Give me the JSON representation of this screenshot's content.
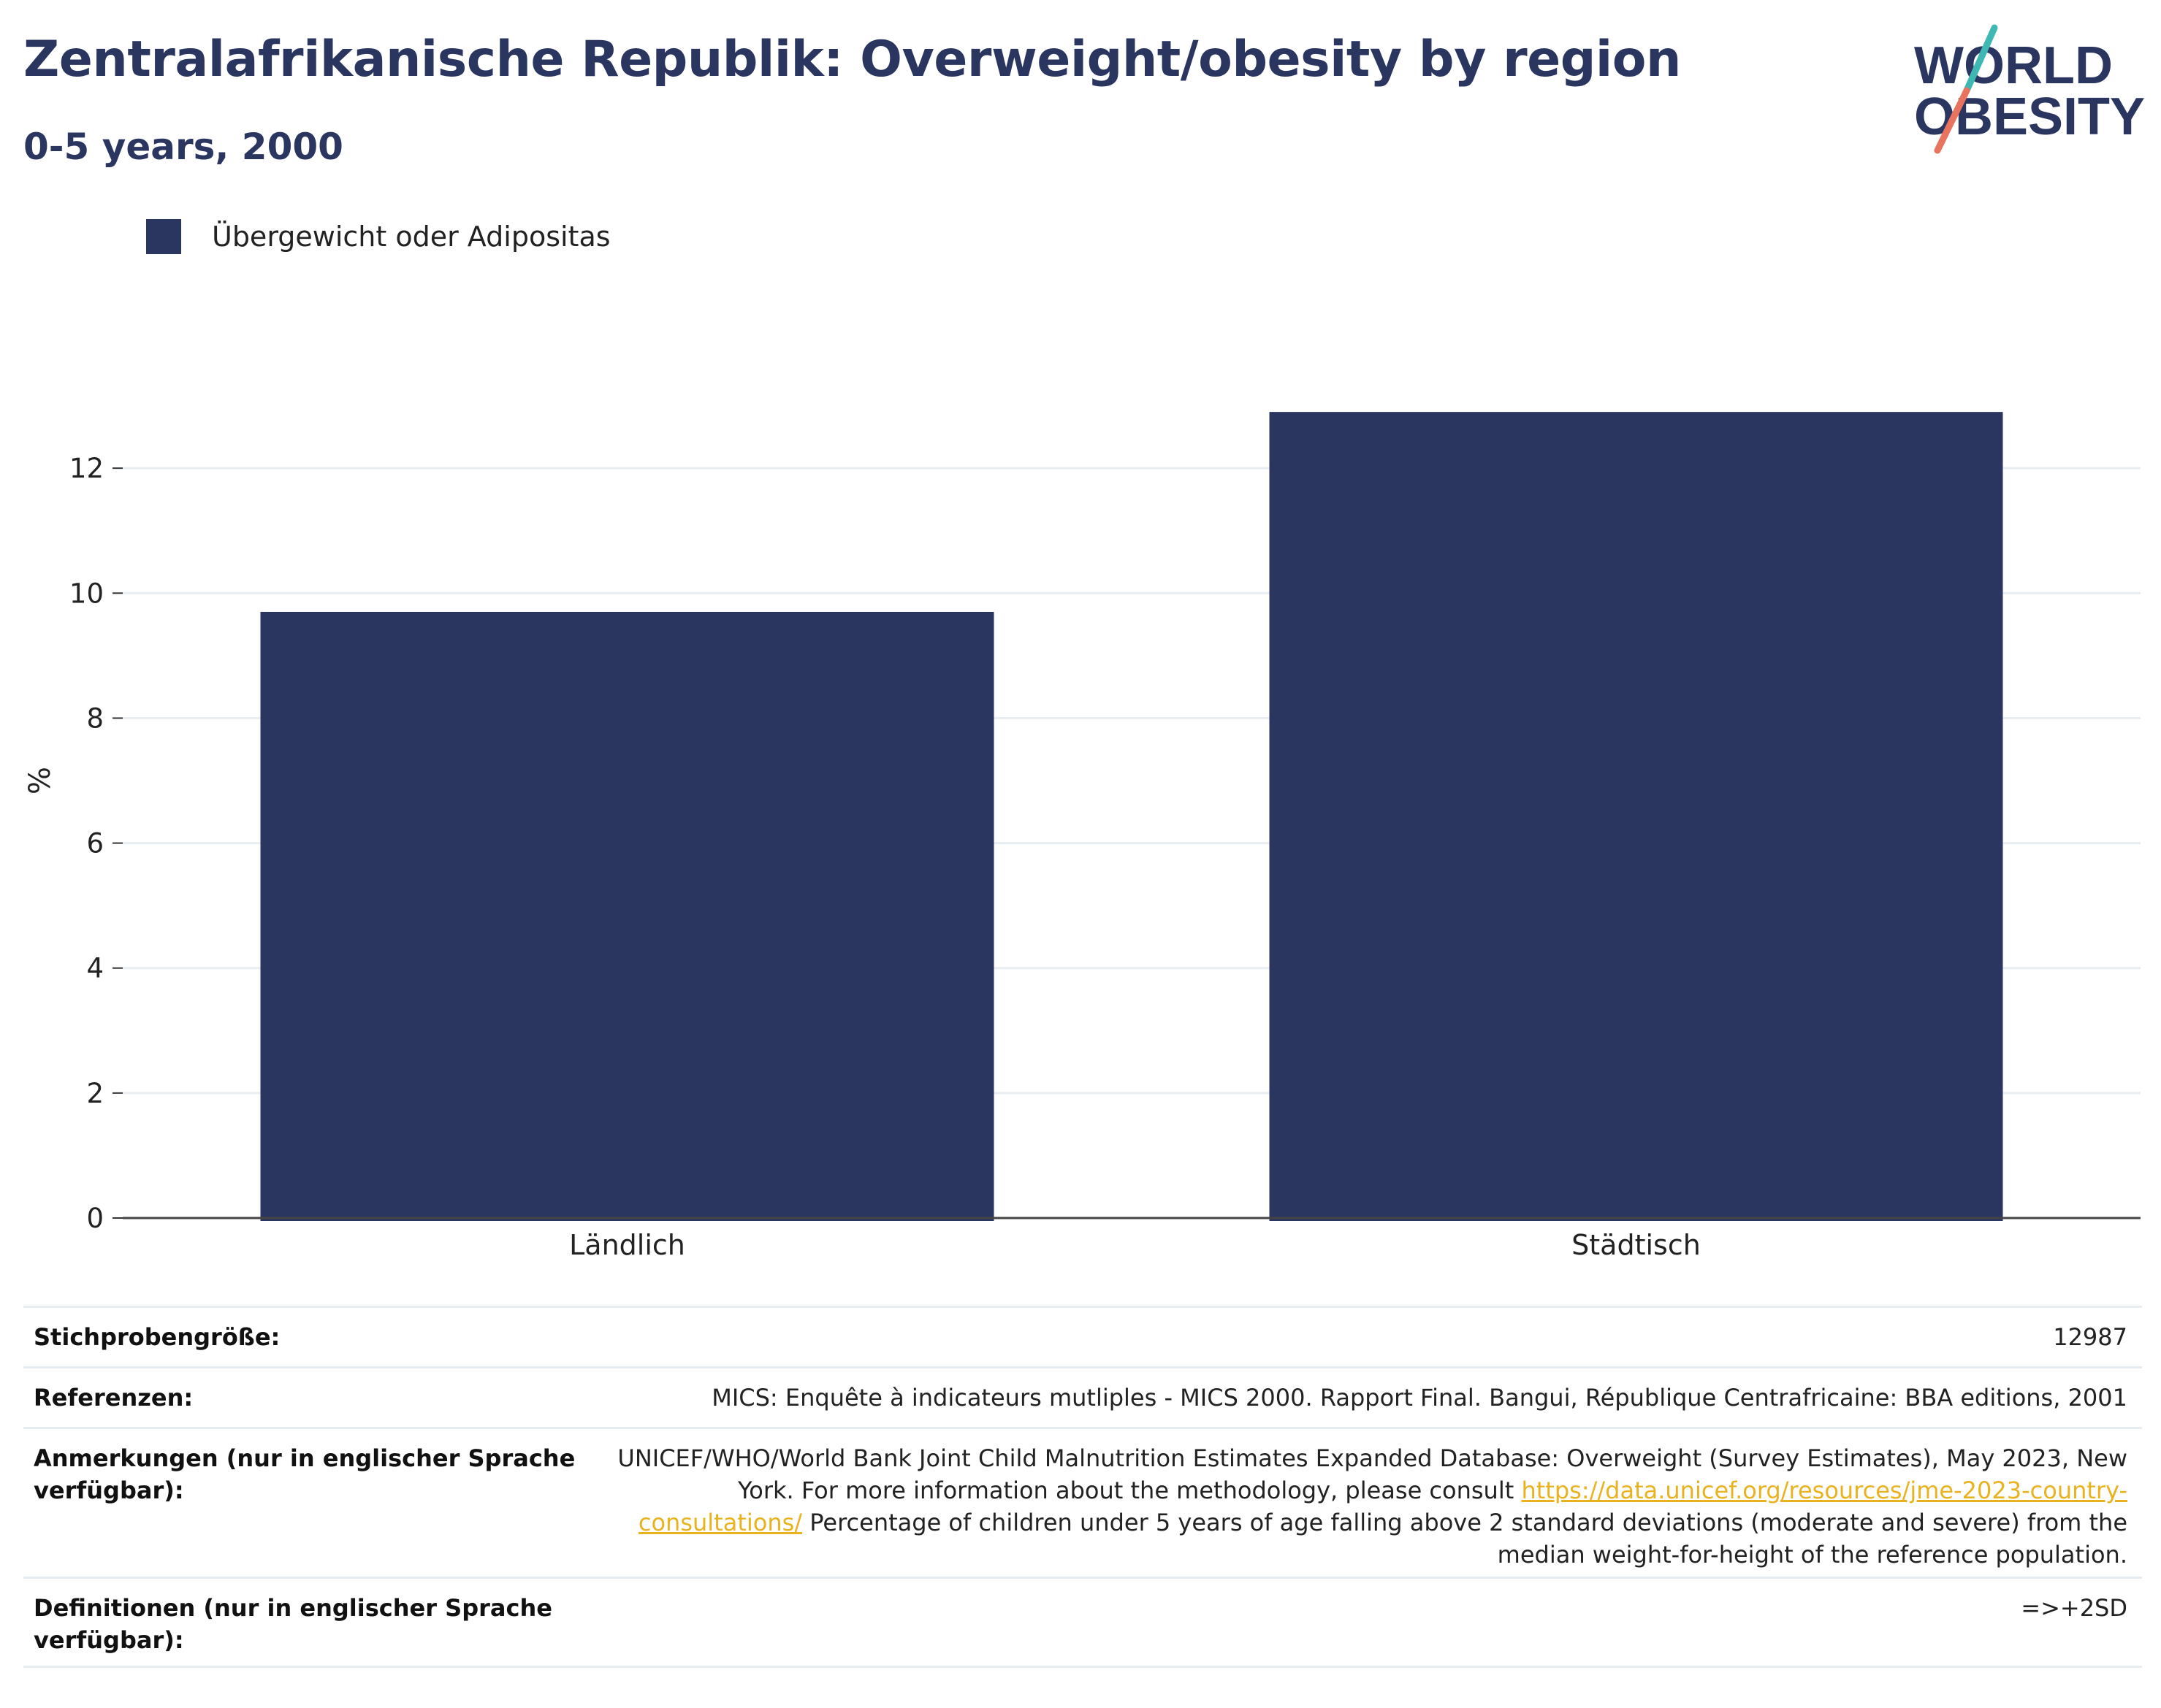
{
  "chart_data": {
    "type": "bar",
    "title": "Zentralafrikanische Republik: Overweight/obesity by region",
    "subtitle": "0-5 years, 2000",
    "categories": [
      "Ländlich",
      "Städtisch"
    ],
    "series": [
      {
        "name": "Übergewicht oder Adipositas",
        "values": [
          9.7,
          12.9
        ],
        "color": "#2a3660"
      }
    ],
    "ylabel": "%",
    "xlabel": "",
    "ylim": [
      0,
      14
    ],
    "yticks": [
      0,
      2,
      4,
      6,
      8,
      10,
      12
    ],
    "grid": true,
    "legend": "top-left"
  },
  "logo": {
    "line1": "WORLD",
    "line2": "OBESITY"
  },
  "colors": {
    "brand_navy": "#2a3660",
    "logo_teal": "#3fb8b3",
    "logo_coral": "#e8735f",
    "link": "#e9b21f"
  },
  "info": {
    "sample_size_label": "Stichprobengröße:",
    "sample_size_value": "12987",
    "references_label": "Referenzen:",
    "references_value": "MICS: Enquête à indicateurs mutliples - MICS 2000. Rapport Final. Bangui, République Centrafricaine: BBA editions, 2001",
    "notes_label": "Anmerkungen (nur in englischer Sprache verfügbar):",
    "notes_text_before": "UNICEF/WHO/World Bank Joint Child Malnutrition Estimates Expanded Database: Overweight (Survey Estimates), May 2023, New York. For more information about the methodology, please consult ",
    "notes_link": "https://data.unicef.org/resources/jme-2023-country-consultations/",
    "notes_text_after": " Percentage of children under 5 years of age falling above 2 standard deviations (moderate and severe) from the median weight-for-height of the reference population.",
    "definitions_label": "Definitionen (nur in englischer Sprache verfügbar):",
    "definitions_value": "=>+2SD"
  }
}
